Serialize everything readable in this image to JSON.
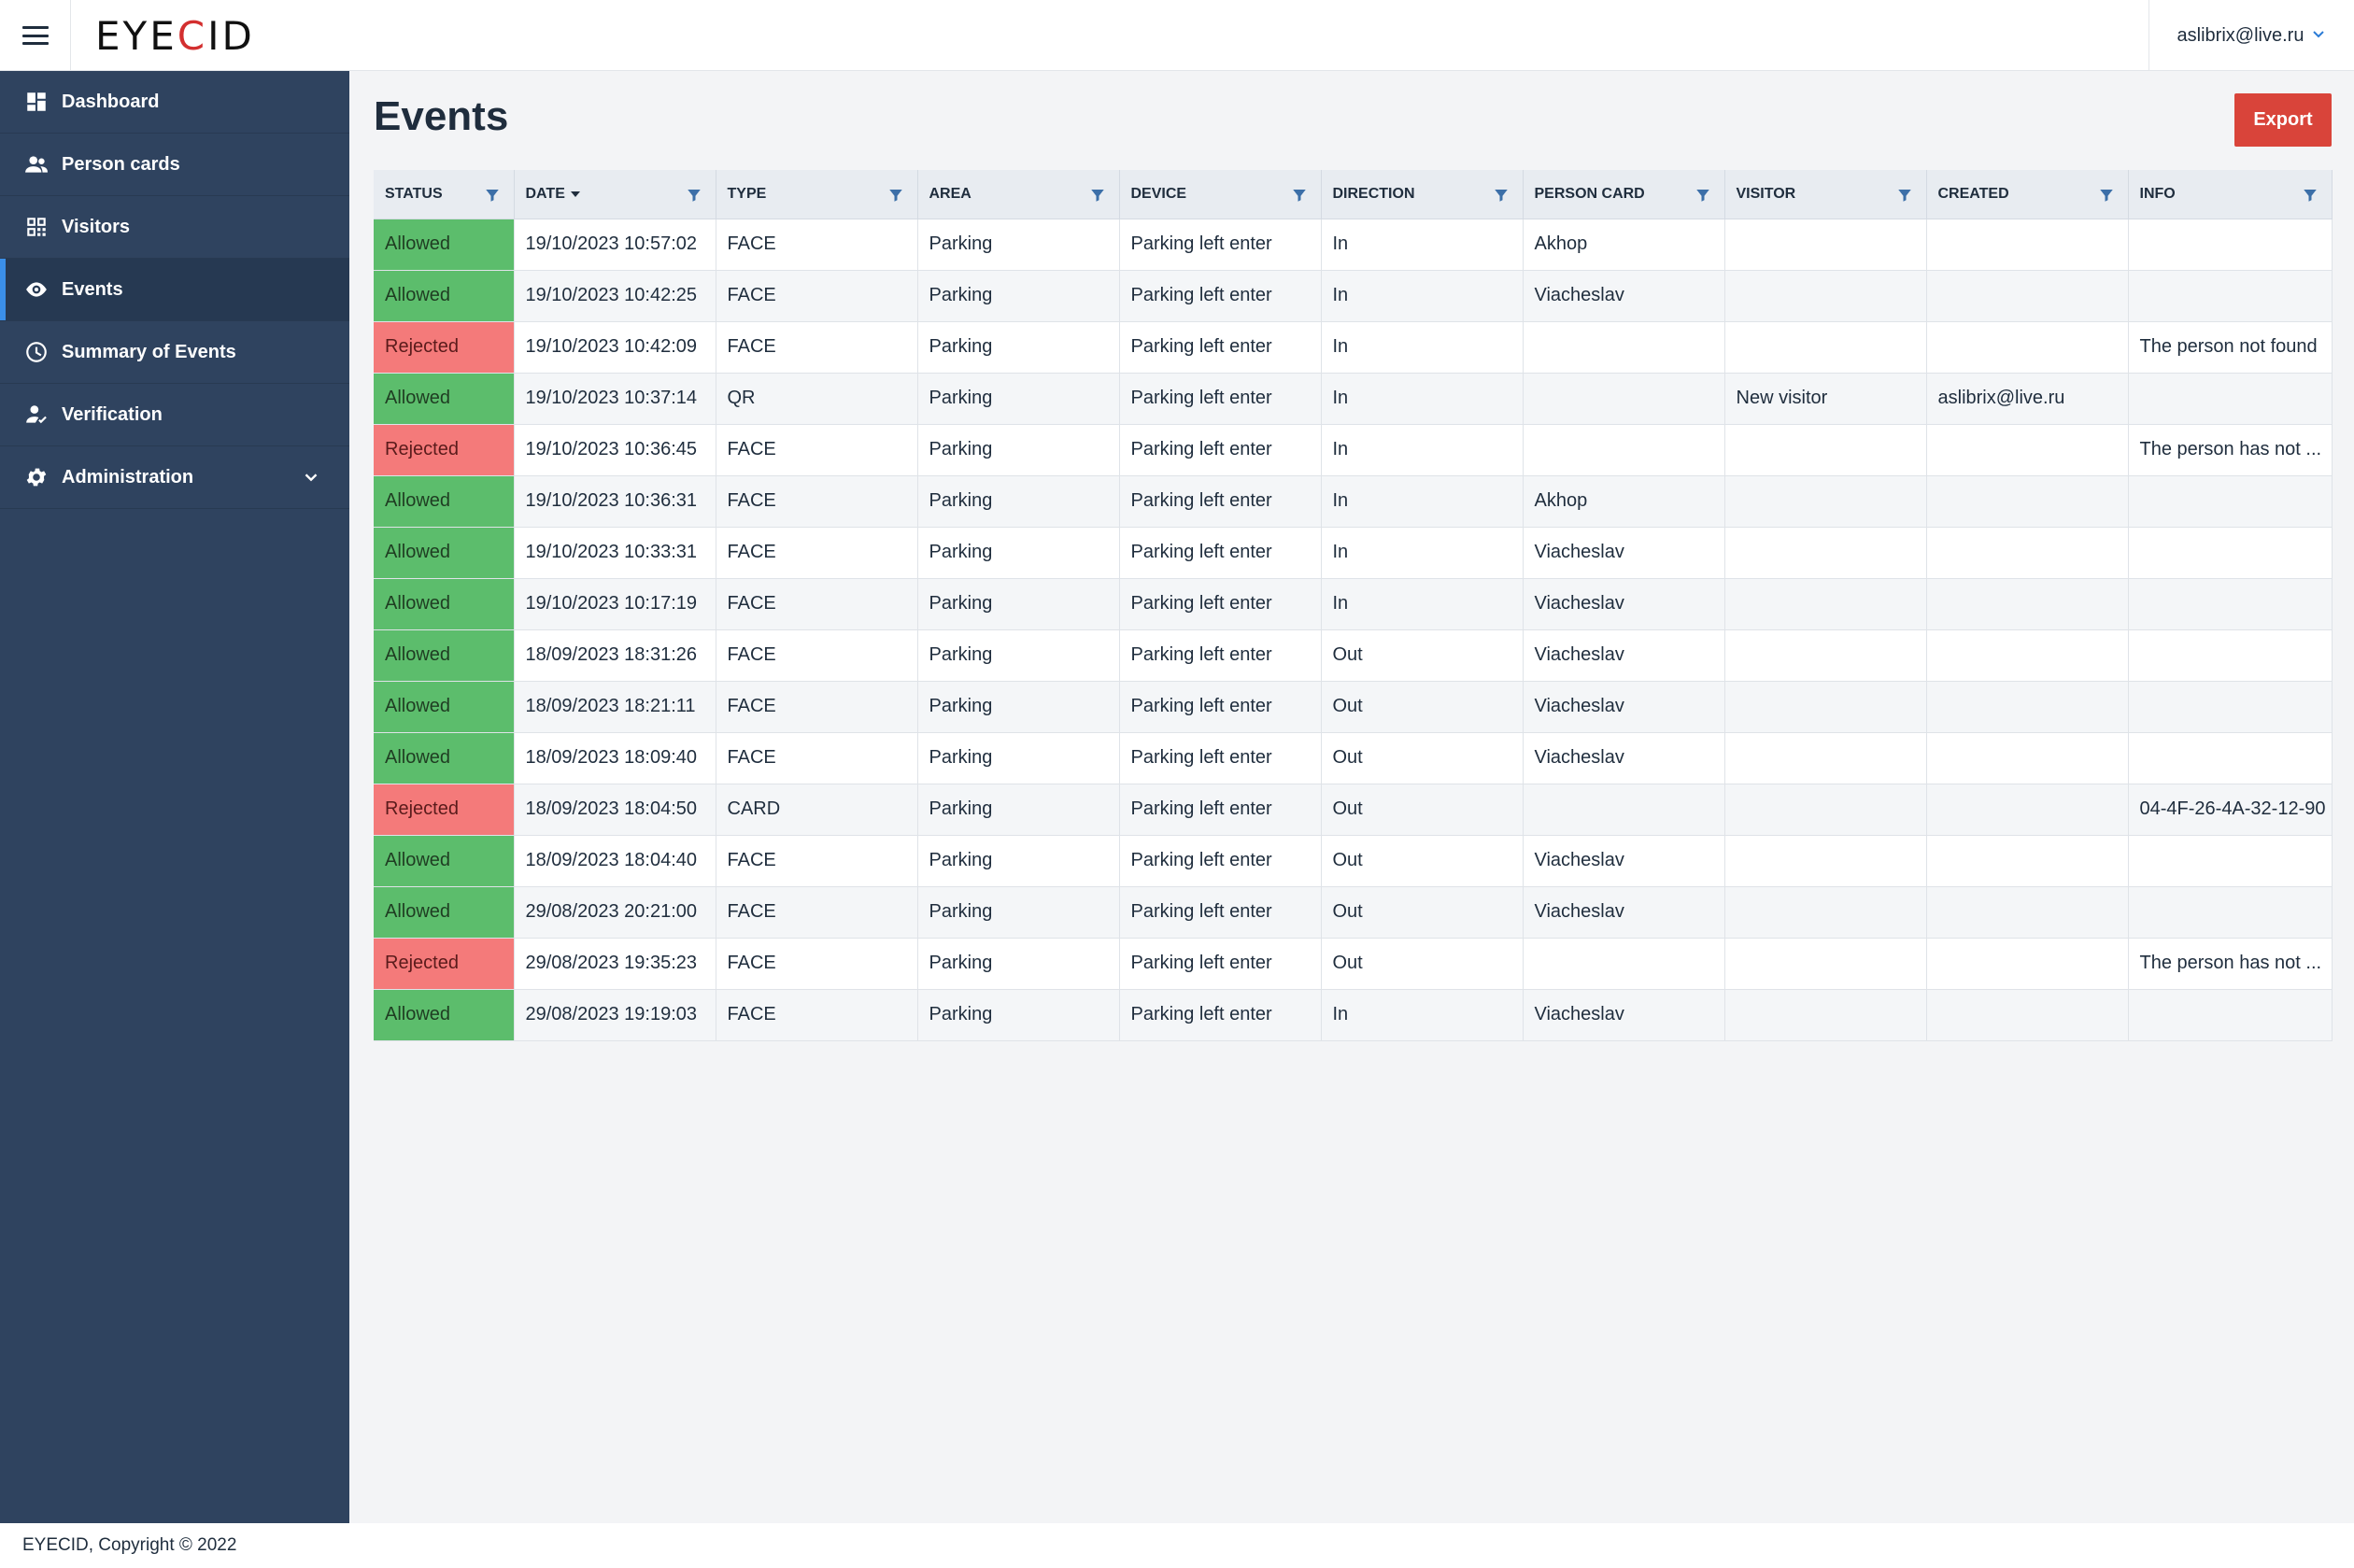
{
  "app": {
    "logo_prefix": "EYE",
    "logo_accent": "C",
    "logo_suffix": "ID",
    "user_email": "aslibrix@live.ru"
  },
  "sidebar": {
    "items": [
      {
        "label": "Dashboard",
        "icon": "dashboard-icon"
      },
      {
        "label": "Person cards",
        "icon": "people-icon"
      },
      {
        "label": "Visitors",
        "icon": "qr-code-icon"
      },
      {
        "label": "Events",
        "icon": "eye-icon",
        "active": true
      },
      {
        "label": "Summary of Events",
        "icon": "clock-icon"
      },
      {
        "label": "Verification",
        "icon": "person-check-icon"
      },
      {
        "label": "Administration",
        "icon": "gear-icon",
        "expandable": true
      }
    ]
  },
  "page": {
    "title": "Events",
    "export_label": "Export"
  },
  "table": {
    "columns": [
      "STATUS",
      "DATE",
      "TYPE",
      "AREA",
      "DEVICE",
      "DIRECTION",
      "PERSON CARD",
      "VISITOR",
      "CREATED",
      "INFO"
    ],
    "sorted_column": "DATE",
    "rows": [
      {
        "status": "Allowed",
        "date": "19/10/2023 10:57:02",
        "type": "FACE",
        "area": "Parking",
        "device": "Parking left enter",
        "direction": "In",
        "person_card": "Akhop",
        "visitor": "",
        "created": "",
        "info": ""
      },
      {
        "status": "Allowed",
        "date": "19/10/2023 10:42:25",
        "type": "FACE",
        "area": "Parking",
        "device": "Parking left enter",
        "direction": "In",
        "person_card": "Viacheslav",
        "visitor": "",
        "created": "",
        "info": ""
      },
      {
        "status": "Rejected",
        "date": "19/10/2023 10:42:09",
        "type": "FACE",
        "area": "Parking",
        "device": "Parking left enter",
        "direction": "In",
        "person_card": "",
        "visitor": "",
        "created": "",
        "info": "The person not found"
      },
      {
        "status": "Allowed",
        "date": "19/10/2023 10:37:14",
        "type": "QR",
        "area": "Parking",
        "device": "Parking left enter",
        "direction": "In",
        "person_card": "",
        "visitor": "New visitor",
        "created": "aslibrix@live.ru",
        "info": ""
      },
      {
        "status": "Rejected",
        "date": "19/10/2023 10:36:45",
        "type": "FACE",
        "area": "Parking",
        "device": "Parking left enter",
        "direction": "In",
        "person_card": "",
        "visitor": "",
        "created": "",
        "info": "The person has not ..."
      },
      {
        "status": "Allowed",
        "date": "19/10/2023 10:36:31",
        "type": "FACE",
        "area": "Parking",
        "device": "Parking left enter",
        "direction": "In",
        "person_card": "Akhop",
        "visitor": "",
        "created": "",
        "info": ""
      },
      {
        "status": "Allowed",
        "date": "19/10/2023 10:33:31",
        "type": "FACE",
        "area": "Parking",
        "device": "Parking left enter",
        "direction": "In",
        "person_card": "Viacheslav",
        "visitor": "",
        "created": "",
        "info": ""
      },
      {
        "status": "Allowed",
        "date": "19/10/2023 10:17:19",
        "type": "FACE",
        "area": "Parking",
        "device": "Parking left enter",
        "direction": "In",
        "person_card": "Viacheslav",
        "visitor": "",
        "created": "",
        "info": ""
      },
      {
        "status": "Allowed",
        "date": "18/09/2023 18:31:26",
        "type": "FACE",
        "area": "Parking",
        "device": "Parking left enter",
        "direction": "Out",
        "person_card": "Viacheslav",
        "visitor": "",
        "created": "",
        "info": ""
      },
      {
        "status": "Allowed",
        "date": "18/09/2023 18:21:11",
        "type": "FACE",
        "area": "Parking",
        "device": "Parking left enter",
        "direction": "Out",
        "person_card": "Viacheslav",
        "visitor": "",
        "created": "",
        "info": ""
      },
      {
        "status": "Allowed",
        "date": "18/09/2023 18:09:40",
        "type": "FACE",
        "area": "Parking",
        "device": "Parking left enter",
        "direction": "Out",
        "person_card": "Viacheslav",
        "visitor": "",
        "created": "",
        "info": ""
      },
      {
        "status": "Rejected",
        "date": "18/09/2023 18:04:50",
        "type": "CARD",
        "area": "Parking",
        "device": "Parking left enter",
        "direction": "Out",
        "person_card": "",
        "visitor": "",
        "created": "",
        "info": "04-4F-26-4A-32-12-90"
      },
      {
        "status": "Allowed",
        "date": "18/09/2023 18:04:40",
        "type": "FACE",
        "area": "Parking",
        "device": "Parking left enter",
        "direction": "Out",
        "person_card": "Viacheslav",
        "visitor": "",
        "created": "",
        "info": ""
      },
      {
        "status": "Allowed",
        "date": "29/08/2023 20:21:00",
        "type": "FACE",
        "area": "Parking",
        "device": "Parking left enter",
        "direction": "Out",
        "person_card": "Viacheslav",
        "visitor": "",
        "created": "",
        "info": ""
      },
      {
        "status": "Rejected",
        "date": "29/08/2023 19:35:23",
        "type": "FACE",
        "area": "Parking",
        "device": "Parking left enter",
        "direction": "Out",
        "person_card": "",
        "visitor": "",
        "created": "",
        "info": "The person has not ..."
      },
      {
        "status": "Allowed",
        "date": "29/08/2023 19:19:03",
        "type": "FACE",
        "area": "Parking",
        "device": "Parking left enter",
        "direction": "In",
        "person_card": "Viacheslav",
        "visitor": "",
        "created": "",
        "info": ""
      }
    ]
  },
  "footer": {
    "copyright": "EYECID, Copyright © 2022"
  },
  "colors": {
    "sidebar_bg": "#2f435f",
    "accent": "#3b8fe8",
    "allowed": "#5cbd6c",
    "rejected": "#f47a7a",
    "export_button": "#d9443a"
  }
}
